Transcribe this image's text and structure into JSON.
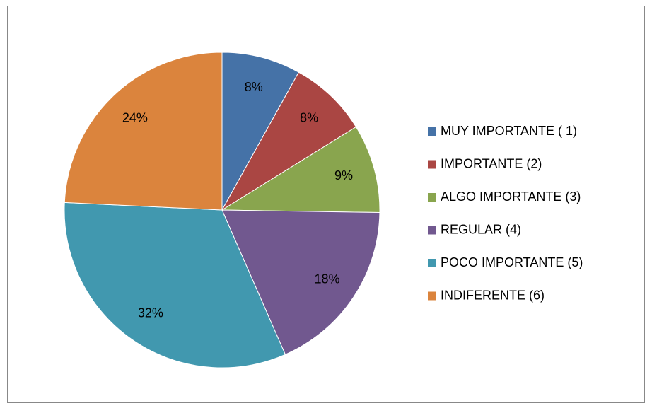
{
  "chart_data": {
    "type": "pie",
    "categories": [
      "MUY IMPORTANTE ( 1)",
      "IMPORTANTE (2)",
      "ALGO IMPORTANTE (3)",
      "REGULAR (4)",
      "POCO IMPORTANTE (5)",
      "INDIFERENTE (6)"
    ],
    "values": [
      8,
      8,
      9,
      18,
      32,
      24
    ],
    "value_labels": [
      "8%",
      "8%",
      "9%",
      "18%",
      "32%",
      "24%"
    ],
    "colors": [
      "#4572a7",
      "#aa4643",
      "#89a54e",
      "#71588f",
      "#4198af",
      "#db843d"
    ],
    "legend": "right"
  }
}
